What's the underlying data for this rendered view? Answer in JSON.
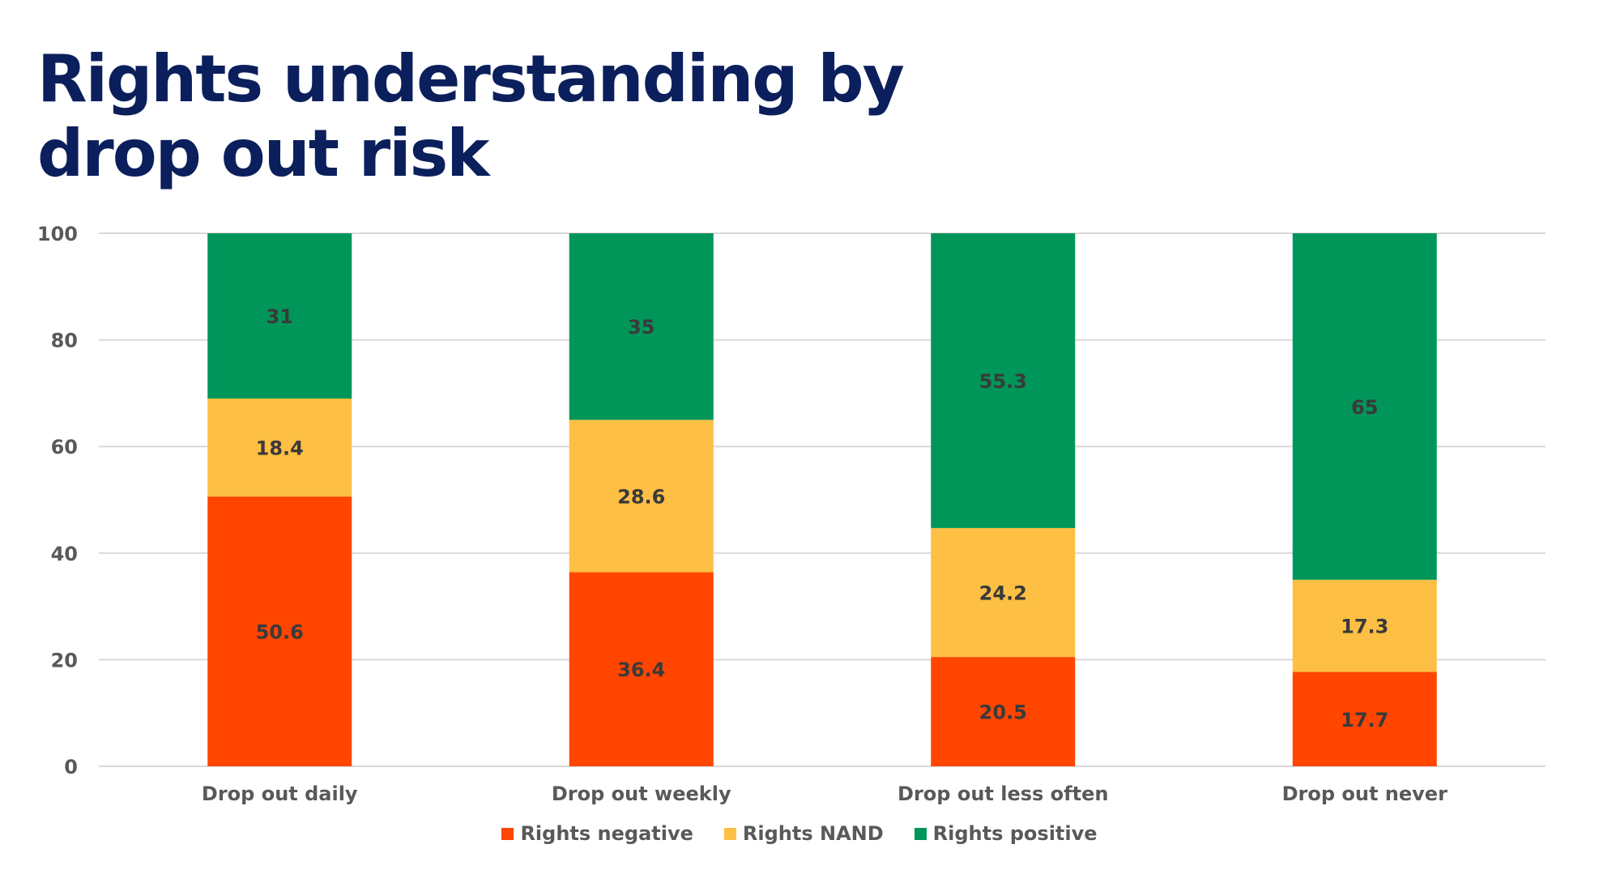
{
  "page": {
    "title": "Rights understanding by drop out risk"
  },
  "chart_data": {
    "type": "bar",
    "stacked": true,
    "title": "Rights understanding by drop out risk",
    "xlabel": "",
    "ylabel": "",
    "ylim": [
      0,
      100
    ],
    "yticks": [
      0,
      20,
      40,
      60,
      80,
      100
    ],
    "grid": true,
    "legend_position": "bottom-center",
    "categories": [
      "Drop out daily",
      "Drop out weekly",
      "Drop out less often",
      "Drop out never"
    ],
    "series": [
      {
        "name": "Rights negative",
        "color": "#FF4500",
        "values": [
          50.6,
          36.4,
          20.5,
          17.7
        ],
        "labels": [
          "50.6",
          "36.4",
          "20.5",
          "17.7"
        ]
      },
      {
        "name": "Rights NAND",
        "color": "#FDBF44",
        "values": [
          18.4,
          28.6,
          24.2,
          17.3
        ],
        "labels": [
          "18.4",
          "28.6",
          "24.2",
          "17.3"
        ]
      },
      {
        "name": "Rights positive",
        "color": "#00965A",
        "values": [
          31,
          35,
          55.3,
          65
        ],
        "labels": [
          "31",
          "35",
          "55.3",
          "65"
        ]
      }
    ]
  },
  "legend": [
    {
      "label": "Rights negative",
      "color": "#FF4500"
    },
    {
      "label": "Rights NAND",
      "color": "#FDBF44"
    },
    {
      "label": "Rights positive",
      "color": "#00965A"
    }
  ]
}
